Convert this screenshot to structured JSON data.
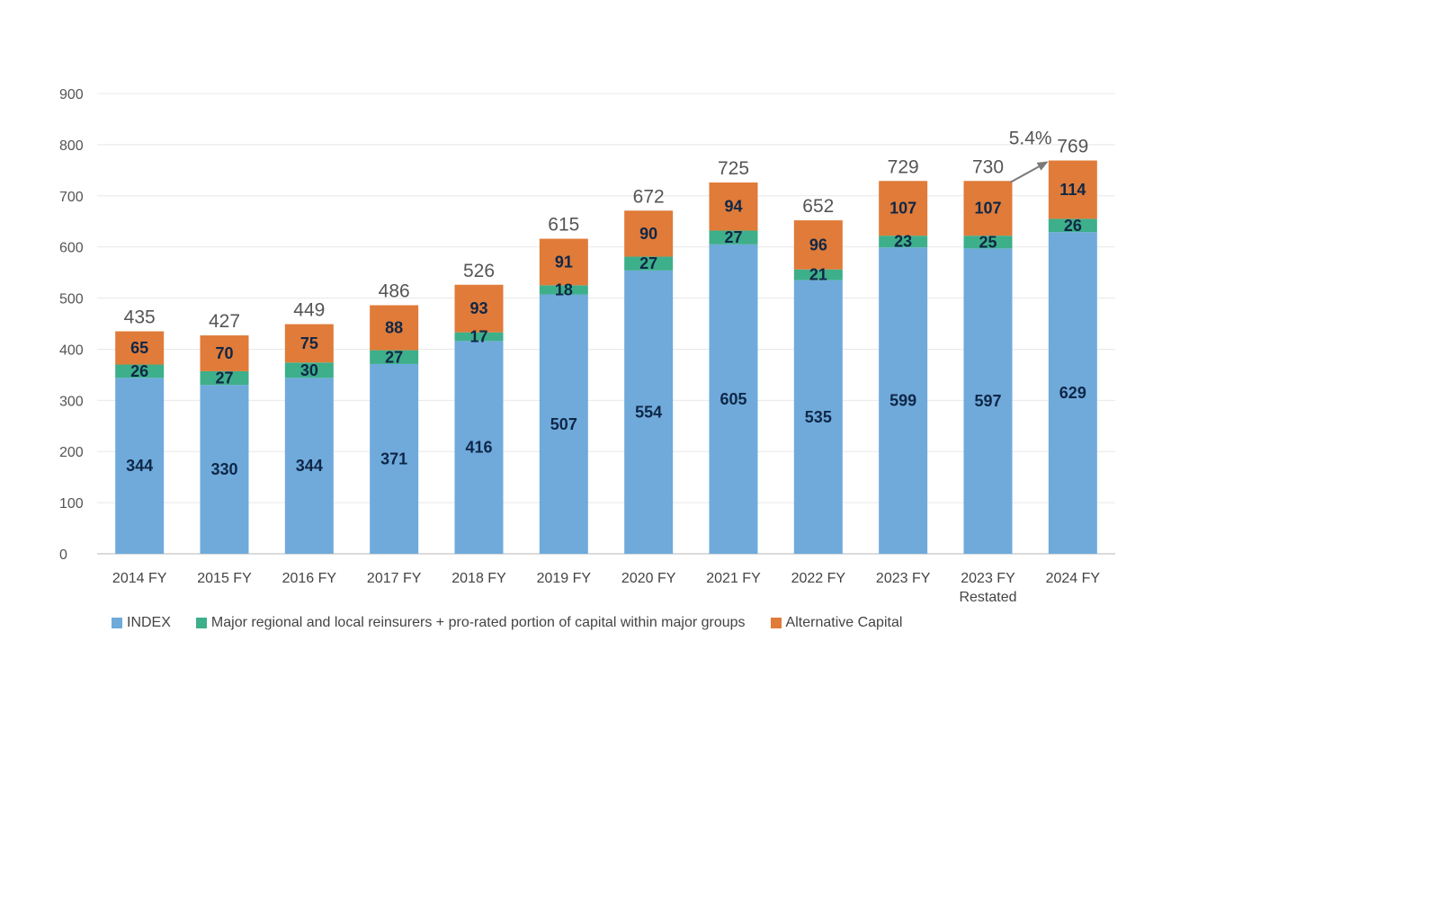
{
  "chart_data": {
    "type": "bar",
    "stacked": true,
    "title": "",
    "xlabel": "",
    "ylabel": "",
    "ylim": [
      0,
      900
    ],
    "yticks": [
      0,
      100,
      200,
      300,
      400,
      500,
      600,
      700,
      800,
      900
    ],
    "grid": true,
    "legend_position": "bottom-left",
    "categories": [
      [
        "2014 FY"
      ],
      [
        "2015 FY"
      ],
      [
        "2016 FY"
      ],
      [
        "2017 FY"
      ],
      [
        "2018 FY"
      ],
      [
        "2019 FY"
      ],
      [
        "2020 FY"
      ],
      [
        "2021 FY"
      ],
      [
        "2022 FY"
      ],
      [
        "2023 FY"
      ],
      [
        "2023 FY",
        "Restated"
      ],
      [
        "2024 FY"
      ]
    ],
    "series": [
      {
        "name": "INDEX",
        "color": "#6faadb",
        "values": [
          344,
          330,
          344,
          371,
          416,
          507,
          554,
          605,
          535,
          599,
          597,
          629
        ]
      },
      {
        "name": "Major regional and local reinsurers + pro-rated portion of capital within major groups",
        "color": "#3daf8a",
        "values": [
          26,
          27,
          30,
          27,
          17,
          18,
          27,
          27,
          21,
          23,
          25,
          26
        ]
      },
      {
        "name": "Alternative Capital",
        "color": "#e07b39",
        "values": [
          65,
          70,
          75,
          88,
          93,
          91,
          90,
          94,
          96,
          107,
          107,
          114
        ]
      }
    ],
    "totals": [
      435,
      427,
      449,
      486,
      526,
      615,
      672,
      725,
      652,
      729,
      730,
      769
    ],
    "annotations": [
      {
        "text": "5.4%",
        "from_category": 10,
        "to_category": 11,
        "arrow": true
      }
    ]
  }
}
